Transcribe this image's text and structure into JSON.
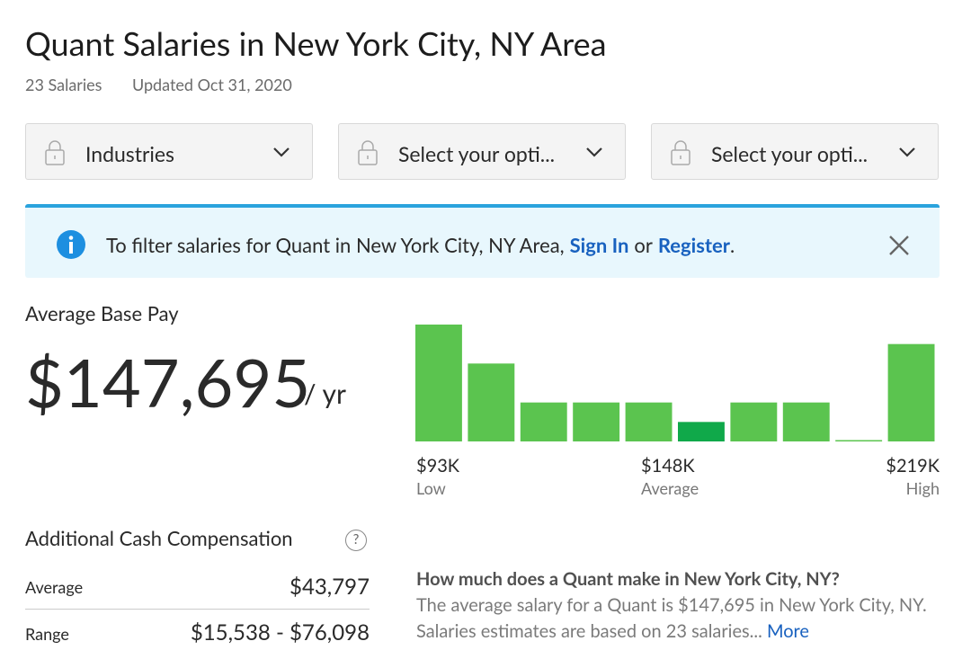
{
  "header": {
    "title": "Quant Salaries in New York City, NY Area",
    "count": "23 Salaries",
    "updated": "Updated Oct 31, 2020"
  },
  "filters": [
    "Industries",
    "Select your opti...",
    "Select your opti..."
  ],
  "banner": {
    "text": "To filter salaries for Quant in New York City, NY Area,",
    "sign_in": "Sign In",
    "or": "or",
    "register": "Register",
    "end": "."
  },
  "base_pay": {
    "label": "Average Base Pay",
    "amount": "$147,695",
    "unit": "/ yr"
  },
  "chart_data": {
    "type": "bar",
    "values": [
      6,
      4,
      2,
      2,
      2,
      1,
      2,
      2,
      0,
      5
    ],
    "color": "#5bc44f",
    "highlight_color": "#10a94a",
    "highlight_index": 5,
    "low": {
      "value": "$93K",
      "label": "Low"
    },
    "average": {
      "value": "$148K",
      "label": "Average"
    },
    "high": {
      "value": "$219K",
      "label": "High"
    }
  },
  "additional": {
    "label": "Additional Cash Compensation",
    "help": "?",
    "rows": [
      [
        "Average",
        "$43,797"
      ],
      [
        "Range",
        "$15,538 - $76,098"
      ]
    ]
  },
  "description": {
    "title": "How much does a Quant make in New York City, NY?",
    "text": "The average salary for a Quant is $147,695 in New York City, NY. Salaries estimates are based on 23 salaries...",
    "more": "More"
  }
}
